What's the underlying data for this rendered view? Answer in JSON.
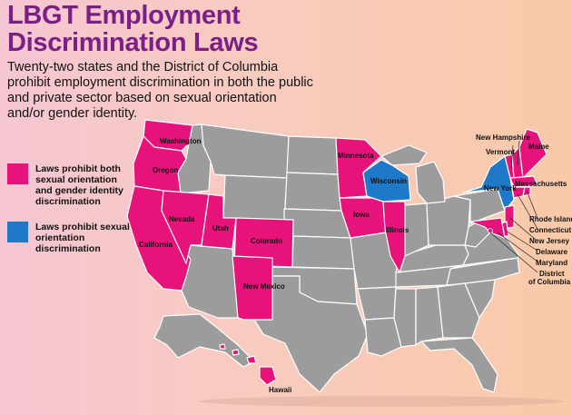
{
  "header": {
    "title_line1": "LBGT Employment",
    "title_line2": "Discrimination Laws",
    "subtitle": "Twenty-two states and the District of Columbia prohibit employment discrimination in both the public and private sector based on sexual orientation and/or gender identity."
  },
  "legend": [
    {
      "label": "Laws prohibit both sexual orientation and gender identity discrimination",
      "color": "#e8137a"
    },
    {
      "label": "Laws prohibit sexual orientation discrimination",
      "color": "#1f78c8"
    }
  ],
  "colors": {
    "other_states": "#9c9c9c",
    "outline": "#ffffff",
    "title": "#7b1f86"
  },
  "states": {
    "washington": "Washington",
    "oregon": "Oregon",
    "california": "California",
    "nevada": "Nevada",
    "utah": "Utah",
    "colorado": "Colorado",
    "new_mexico": "New Mexico",
    "minnesota": "Minnesota",
    "wisconsin": "Wisconsin",
    "iowa": "Iowa",
    "illinois": "Illinois",
    "new_york": "New York",
    "new_hampshire": "New Hampshire",
    "vermont": "Vermont",
    "maine": "Maine",
    "massachusetts": "Massachusetts",
    "rhode_island": "Rhode Island",
    "connecticut": "Connecticut",
    "new_jersey": "New Jersey",
    "delaware": "Delaware",
    "maryland": "Maryland",
    "dc_line1": "District",
    "dc_line2": "of Columbia",
    "hawaii": "Hawaii"
  }
}
